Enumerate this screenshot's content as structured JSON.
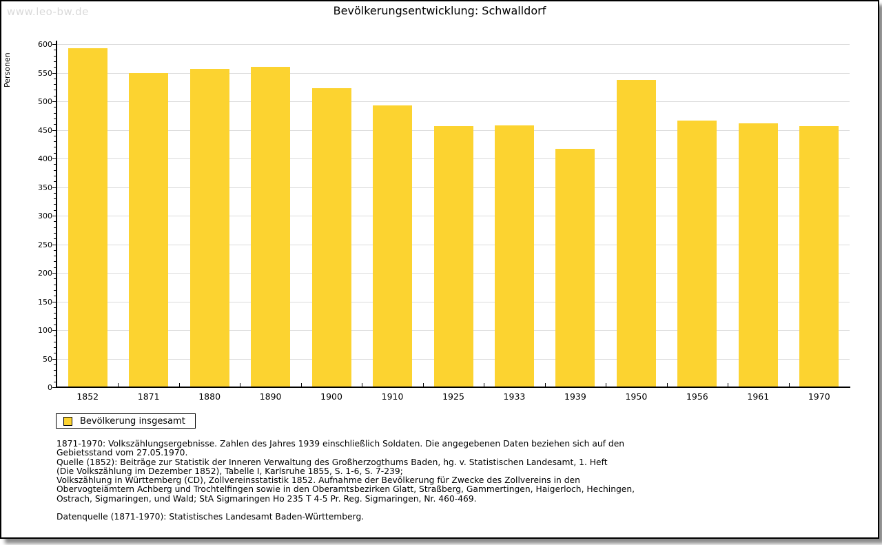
{
  "watermark": "www.leo-bw.de",
  "title": "Bevölkerungsentwicklung: Schwalldorf",
  "chart_data": {
    "type": "bar",
    "title": "Bevölkerungsentwicklung: Schwalldorf",
    "categories": [
      "1852",
      "1871",
      "1880",
      "1890",
      "1900",
      "1910",
      "1925",
      "1933",
      "1939",
      "1950",
      "1956",
      "1961",
      "1970"
    ],
    "values": [
      593,
      550,
      557,
      560,
      523,
      493,
      457,
      458,
      417,
      537,
      466,
      461,
      457
    ],
    "series_name": "Bevölkerung insgesamt",
    "xlabel": "",
    "ylabel": "Personen",
    "ylim": [
      0,
      600
    ],
    "ytick_step": 50,
    "ytick_minor_step": 10,
    "grid": "horizontal-major",
    "gridline_color": "#dbdbdb",
    "bar_color": "#fcd330",
    "legend_position": "bottom-left"
  },
  "legend": {
    "label": "Bevölkerung insgesamt",
    "swatch_color": "#fcd330"
  },
  "footnote": "1871-1970: Volkszählungsergebnisse. Zahlen des Jahres 1939 einschließlich Soldaten. Die angegebenen Daten beziehen sich auf den\nGebietsstand vom 27.05.1970.\nQuelle (1852): Beiträge zur Statistik der Inneren Verwaltung des Großherzogthums Baden, hg. v. Statistischen Landesamt, 1. Heft\n(Die Volkszählung im Dezember 1852), Tabelle I, Karlsruhe 1855, S. 1-6, S. 7-239;\nVolkszählung in Württemberg (CD), Zollvereinsstatistik 1852. Aufnahme der Bevölkerung für Zwecke des Zollvereins in den\nObervogteiämtern Achberg und Trochtelfingen sowie in den Oberamtsbezirken Glatt, Straßberg, Gammertingen, Haigerloch, Hechingen,\nOstrach, Sigmaringen, und Wald; StA Sigmaringen Ho 235 T 4-5 Pr. Reg. Sigmaringen, Nr. 460-469.",
  "datasource": "Datenquelle (1871-1970): Statistisches Landesamt Baden-Württemberg."
}
